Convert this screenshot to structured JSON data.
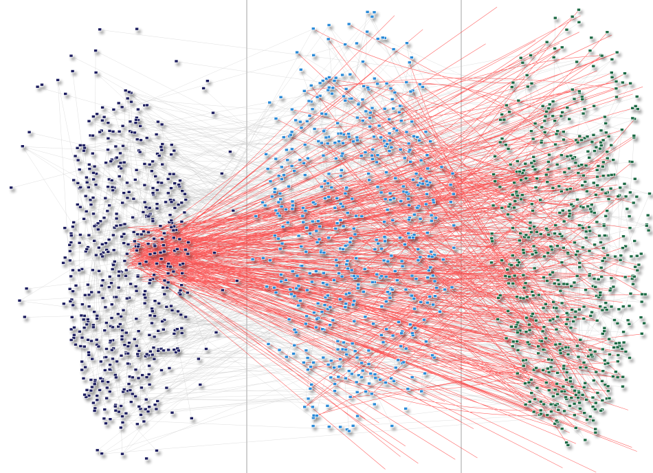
{
  "graph": {
    "groups": [
      {
        "color": "#1a1f5e"
      },
      {
        "color": "#2a8ad8"
      },
      {
        "color": "#1e6b45"
      }
    ],
    "edge_colors": {
      "intra": "#c8c8c8",
      "inter": "#ff2020"
    },
    "divider_color": "#a0a0a0"
  }
}
